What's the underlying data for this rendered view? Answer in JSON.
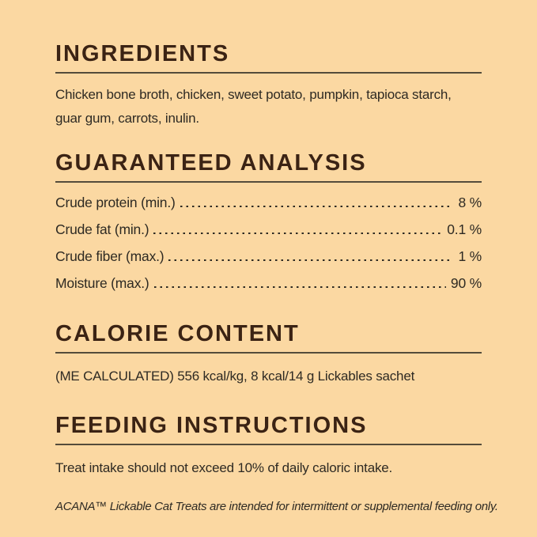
{
  "theme": {
    "bg": "#FBD8A2",
    "heading": "#3B2314",
    "text": "#2E2A23",
    "rule": "#544C3B"
  },
  "sections": {
    "ingredients": {
      "title": "INGREDIENTS",
      "lines": [
        "Chicken bone broth, chicken, sweet potato, pumpkin, tapioca starch,",
        "guar gum, carrots, inulin."
      ]
    },
    "guaranteed_analysis": {
      "title": "GUARANTEED ANALYSIS",
      "rows": [
        {
          "label": "Crude protein (min.)",
          "value": "8 %"
        },
        {
          "label": "Crude fat (min.)",
          "value": "0.1 %"
        },
        {
          "label": "Crude fiber (max.)",
          "value": "1 %"
        },
        {
          "label": "Moisture (max.)",
          "value": "90 %"
        }
      ]
    },
    "calorie_content": {
      "title": "CALORIE CONTENT",
      "body": "(ME CALCULATED) 556 kcal/kg, 8 kcal/14 g Lickables sachet"
    },
    "feeding_instructions": {
      "title": "FEEDING INSTRUCTIONS",
      "body": "Treat intake should not exceed 10% of daily caloric intake."
    },
    "footnote": {
      "text": "ACANA™ Lickable Cat Treats are intended for intermittent or supplemental feeding only."
    }
  }
}
